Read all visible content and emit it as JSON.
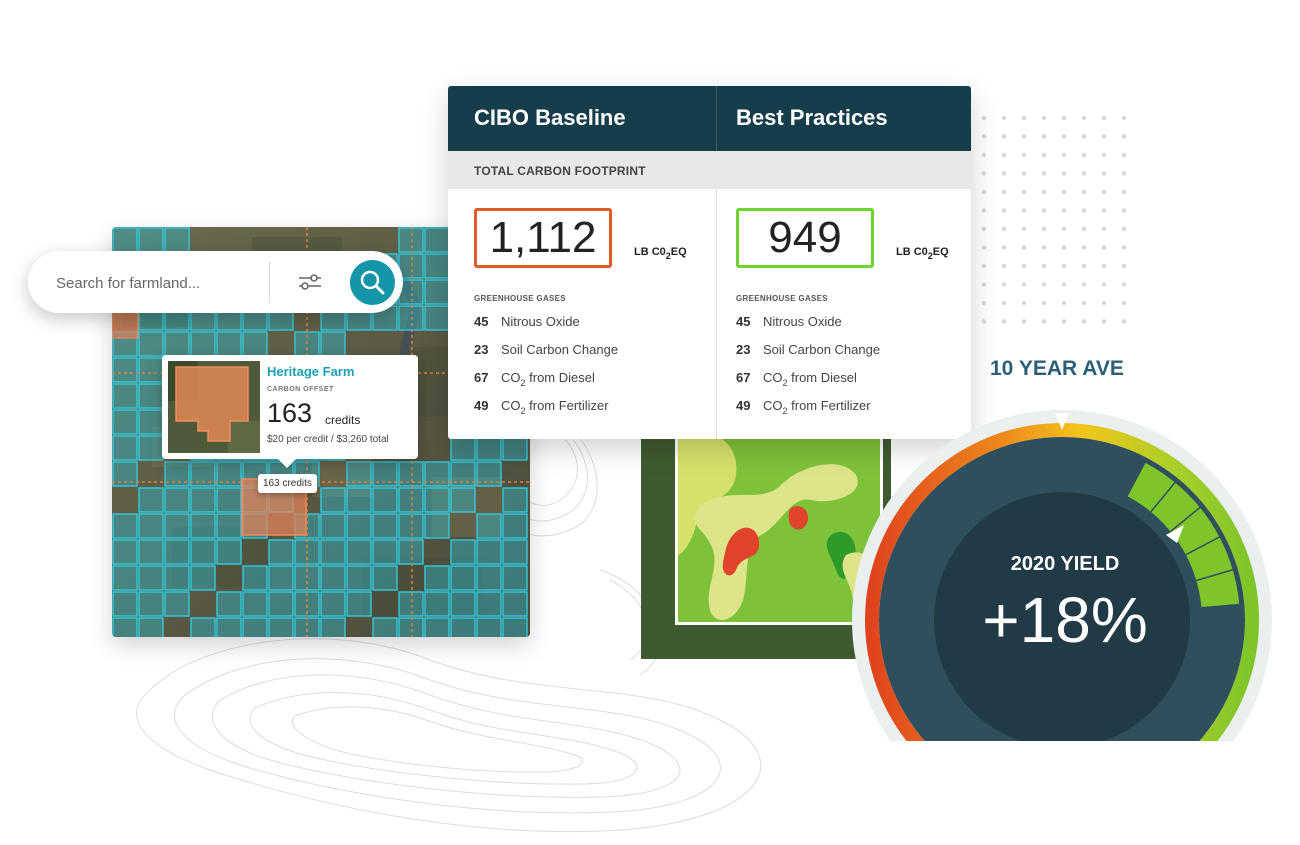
{
  "search": {
    "placeholder": "Search for farmland..."
  },
  "farm_popup": {
    "name": "Heritage Farm",
    "offset_label": "CARBON OFFSET",
    "credits": "163",
    "credits_unit": "credits",
    "price": "$20 per credit / $3,260 total"
  },
  "map_chip": "163 credits",
  "carbon_card": {
    "footprint_label": "TOTAL CARBON FOOTPRINT",
    "unit_prefix": "LB C0",
    "unit_sub": "2",
    "unit_suffix": "EQ",
    "gases_title": "GREENHOUSE GASES",
    "baseline": {
      "title": "CIBO Baseline",
      "value": "1,112",
      "border_color": "#e05a2a",
      "gases": [
        {
          "value": "45",
          "label": "Nitrous Oxide"
        },
        {
          "value": "23",
          "label": "Soil Carbon Change"
        },
        {
          "value": "67",
          "label_pre": "CO",
          "label_sub": "2",
          "label_post": " from Diesel"
        },
        {
          "value": "49",
          "label_pre": "CO",
          "label_sub": "2",
          "label_post": " from Fertilizer"
        }
      ]
    },
    "practices": {
      "title": "Best Practices",
      "value": "949",
      "border_color": "#6dd32f",
      "gases": [
        {
          "value": "45",
          "label": "Nitrous Oxide"
        },
        {
          "value": "23",
          "label": "Soil Carbon Change"
        },
        {
          "value": "67",
          "label_pre": "CO",
          "label_sub": "2",
          "label_post": " from Diesel"
        },
        {
          "value": "49",
          "label_pre": "CO",
          "label_sub": "2",
          "label_post": " from Fertilizer"
        }
      ]
    }
  },
  "gauge": {
    "reference_label": "10 YEAR AVE",
    "yield_label": "2020 YIELD",
    "yield_value": "+18%",
    "colors": {
      "low": "#e0441e",
      "mid": "#f3c51b",
      "high": "#7dc52a",
      "dial": "#2f4f5c",
      "center": "#213b46"
    }
  },
  "icons": {
    "search": "search-icon",
    "filter": "sliders-icon"
  },
  "colors": {
    "header_bg": "#163d4a",
    "accent_teal": "#1495a8",
    "farm_name": "#1aa1b6"
  }
}
